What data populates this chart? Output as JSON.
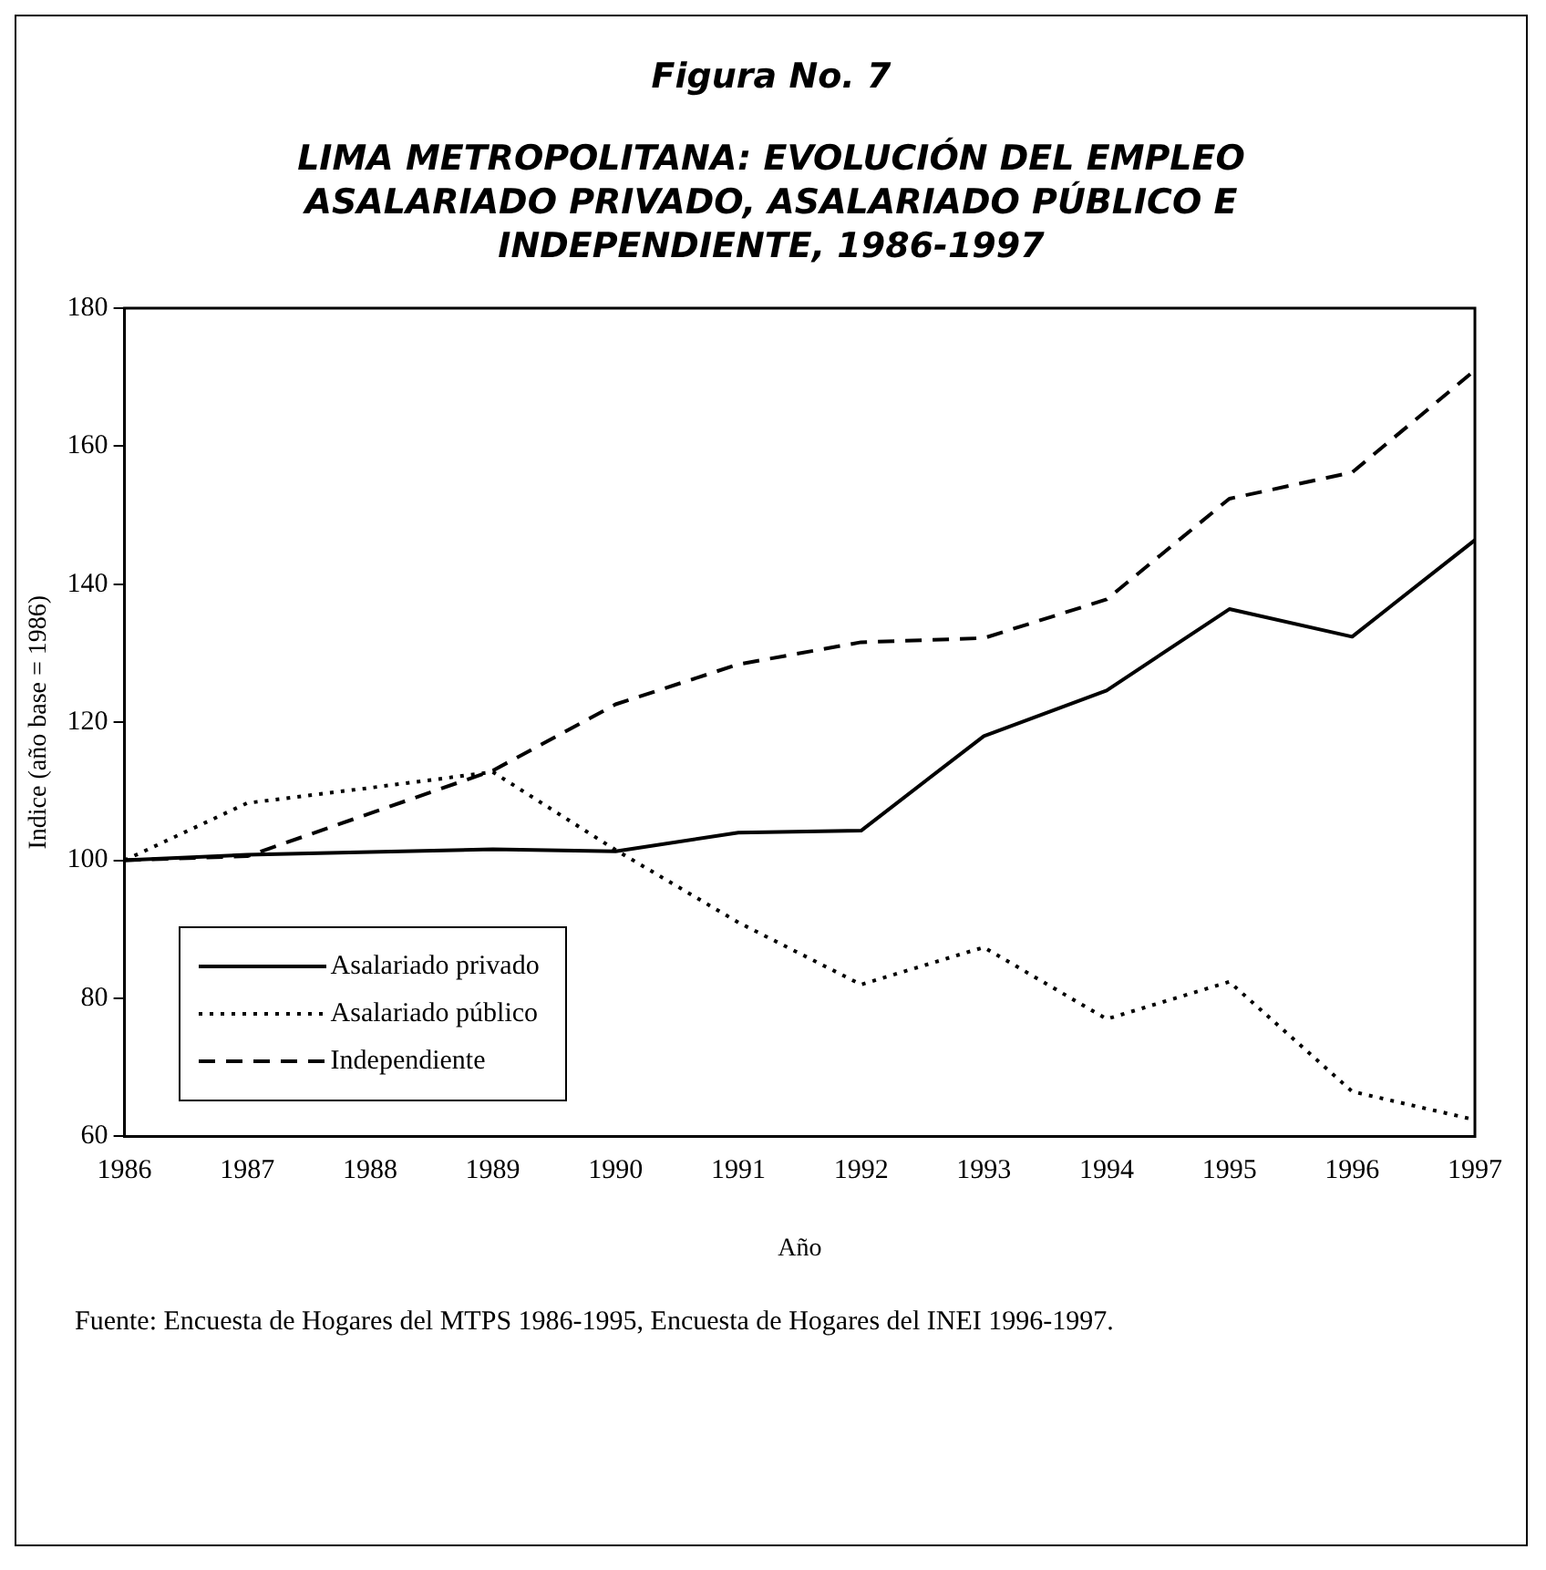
{
  "chart_data": {
    "type": "line",
    "title": "Figura No. 7",
    "subtitle": "LIMA METROPOLITANA: EVOLUCIÓN DEL EMPLEO ASALARIADO PRIVADO, ASALARIADO PÚBLICO E INDEPENDIENTE, 1986-1997",
    "xlabel": "Año",
    "ylabel": "Indice (año base = 1986)",
    "annotations": [
      "Fuente: Encuesta de Hogares del MTPS 1986-1995, Encuesta de Hogares del INEI 1996-1997."
    ],
    "x": [
      1986,
      1987,
      1988,
      1989,
      1990,
      1991,
      1992,
      1993,
      1994,
      1995,
      1996,
      1997
    ],
    "series": [
      {
        "name": "Asalariado privado",
        "color": "#000000",
        "line_style": "solid",
        "values": [
          100,
          100.8,
          101.2,
          101.6,
          101.3,
          104,
          104.3,
          118,
          124.6,
          136.4,
          132.4,
          146.4
        ]
      },
      {
        "name": "Asalariado público",
        "color": "#000000",
        "line_style": "dotted",
        "values": [
          100,
          108.3,
          110.5,
          112.8,
          101.5,
          91,
          82,
          87.4,
          77,
          82.4,
          66.5,
          62.4
        ]
      },
      {
        "name": "Independiente",
        "color": "#000000",
        "line_style": "dashed",
        "values": [
          100,
          100.6,
          106.8,
          113,
          122.6,
          128.4,
          131.6,
          132.2,
          137.8,
          152.4,
          156.2,
          171
        ]
      }
    ],
    "xlim": [
      1986,
      1997
    ],
    "xticks": [
      1986,
      1987,
      1988,
      1989,
      1990,
      1991,
      1992,
      1993,
      1994,
      1995,
      1996,
      1997
    ],
    "ylim": [
      60,
      180
    ],
    "yticks": [
      60,
      80,
      100,
      120,
      140,
      160,
      180
    ],
    "grid": false,
    "legend": "bottom left",
    "marker": "none"
  }
}
